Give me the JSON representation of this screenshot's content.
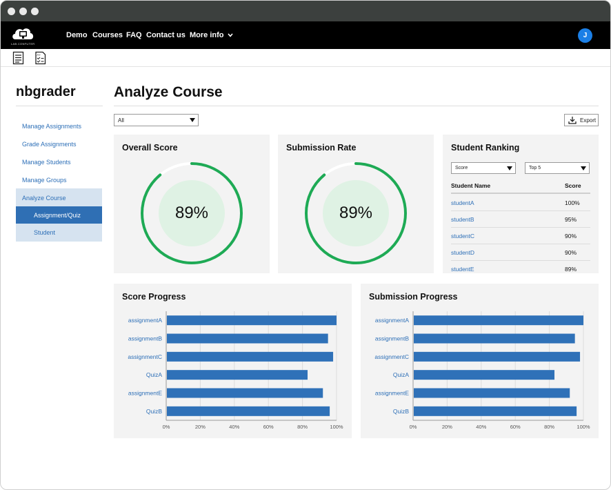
{
  "nav": {
    "logo_text": "LAB.CONFUTER",
    "links": [
      "Demo",
      "Courses",
      "FAQ",
      "Contact us",
      "More info"
    ],
    "avatar_letter": "J"
  },
  "sidebar": {
    "title": "nbgrader",
    "items": [
      "Manage Assignments",
      "Grade Assignments",
      "Manage Students",
      "Manage Groups"
    ],
    "group_label": "Analyze Course",
    "active_sub": "Assignment/Quiz",
    "sub_item": "Student"
  },
  "main": {
    "title": "Analyze Course",
    "filter_value": "All",
    "export_label": "Export"
  },
  "cards": {
    "overall": {
      "title": "Overall Score",
      "value": 0.89,
      "label": "89%"
    },
    "submission": {
      "title": "Submission Rate",
      "value": 0.89,
      "label": "89%"
    },
    "ranking": {
      "title": "Student Ranking",
      "sort_value": "Score",
      "top_value": "Top 5",
      "headers": [
        "Student Name",
        "Score"
      ],
      "rows": [
        [
          "studentA",
          "100%"
        ],
        [
          "studentB",
          "95%"
        ],
        [
          "studentC",
          "90%"
        ],
        [
          "studentD",
          "90%"
        ],
        [
          "studentE",
          "89%"
        ]
      ]
    }
  },
  "colors": {
    "accent_green": "#1eaa55",
    "bar_blue": "#2f71b8",
    "link_blue": "#2d6fb7"
  },
  "chart_data": [
    {
      "type": "bar",
      "orientation": "horizontal",
      "title": "Score Progress",
      "categories": [
        "assignmentA",
        "assignmentB",
        "assignmentC",
        "QuizA",
        "assignmentE",
        "QuizB"
      ],
      "values": [
        100,
        95,
        98,
        83,
        92,
        96
      ],
      "xlim": [
        0,
        100
      ],
      "xticks": [
        "0%",
        "20%",
        "40%",
        "60%",
        "80%",
        "100%"
      ],
      "grid": true
    },
    {
      "type": "bar",
      "orientation": "horizontal",
      "title": "Submission Progress",
      "categories": [
        "assignmentA",
        "assignmentB",
        "assignmentC",
        "QuizA",
        "assignmentE",
        "QuizB"
      ],
      "values": [
        100,
        95,
        98,
        83,
        92,
        96
      ],
      "xlim": [
        0,
        100
      ],
      "xticks": [
        "0%",
        "20%",
        "40%",
        "60%",
        "80%",
        "100%"
      ],
      "grid": true
    }
  ]
}
